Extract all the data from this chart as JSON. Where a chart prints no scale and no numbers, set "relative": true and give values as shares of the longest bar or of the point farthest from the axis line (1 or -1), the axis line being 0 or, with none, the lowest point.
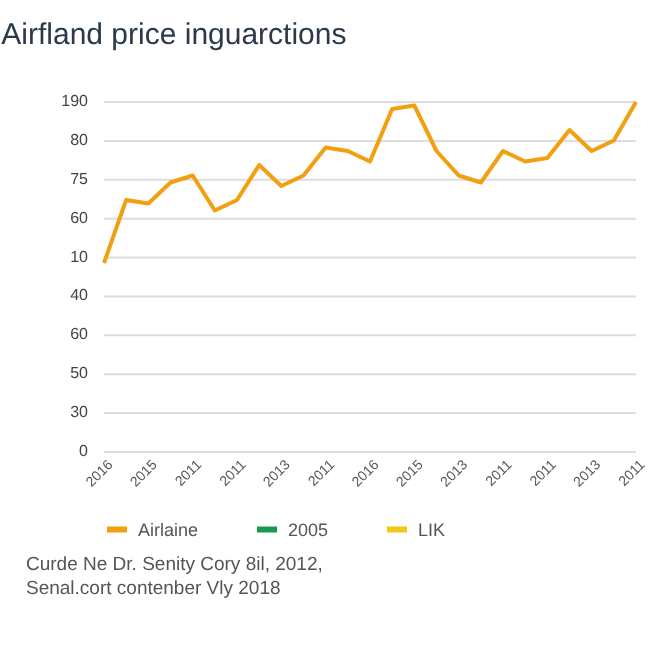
{
  "chart_data": {
    "type": "line",
    "title": "Airfland price inguarctions",
    "relative": true,
    "categories": [
      "2016",
      null,
      "2015",
      null,
      "2011",
      null,
      "2011",
      null,
      "2013",
      null,
      "2011",
      null,
      "2016",
      null,
      "2015",
      null,
      "2013",
      null,
      "2011",
      null,
      "2011",
      null,
      "2013",
      null,
      "2011"
    ],
    "series": [
      {
        "name": "Airlaine",
        "color": "#f0a010",
        "values": [
          0.54,
          0.72,
          0.71,
          0.77,
          0.79,
          0.69,
          0.72,
          0.82,
          0.76,
          0.79,
          0.87,
          0.86,
          0.83,
          0.98,
          0.99,
          0.86,
          0.79,
          0.77,
          0.86,
          0.83,
          0.84,
          0.92,
          0.86,
          0.89,
          1
        ]
      },
      {
        "name": "2005",
        "color": "#1a9850",
        "values": [
          null,
          null,
          null,
          null,
          null,
          null,
          null,
          null,
          null,
          null,
          null,
          null,
          null,
          null,
          null,
          null,
          null,
          null,
          null,
          null,
          null,
          null,
          null,
          null,
          null
        ]
      },
      {
        "name": "LIK",
        "color": "#f5c518",
        "values": [
          null,
          null,
          null,
          null,
          null,
          null,
          null,
          null,
          null,
          null,
          null,
          null,
          null,
          null,
          null,
          null,
          null,
          null,
          null,
          null,
          null,
          null,
          null,
          null,
          null
        ]
      }
    ],
    "grid": "y",
    "legend": "bottom",
    "marker": "none",
    "line_style": "solid",
    "annotations": [
      "0",
      "30",
      "50",
      "60",
      "40",
      "10",
      "60",
      "75",
      "80",
      "190",
      "Curde Ne Dr. Senity Cory 8il, 2012,\nSenal.cort contenber Vly 2018"
    ]
  }
}
